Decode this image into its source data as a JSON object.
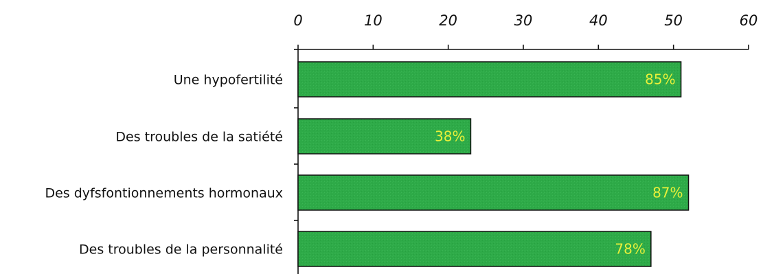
{
  "chart_data": {
    "type": "bar",
    "orientation": "horizontal",
    "title": "",
    "xlabel": "",
    "ylabel": "",
    "xlim": [
      0,
      60
    ],
    "x_ticks": [
      0,
      10,
      20,
      30,
      40,
      50,
      60
    ],
    "x_axis_position": "top",
    "grid": false,
    "legend": "none",
    "bar_color": "#2eaa48",
    "label_color": "#e8f03a",
    "categories": [
      "Une hypofertilité",
      "Des troubles de la satiété",
      "Des dyfsfontionnements hormonaux",
      "Des troubles de la personnalité"
    ],
    "values": [
      51,
      23,
      52,
      47
    ],
    "data_labels": [
      "85%",
      "38%",
      "87%",
      "78%"
    ]
  }
}
